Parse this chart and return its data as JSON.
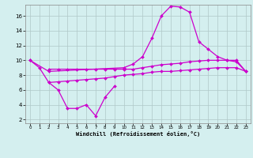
{
  "xlabel": "Windchill (Refroidissement éolien,°C)",
  "background_color": "#d4efef",
  "line_color": "#cc00cc",
  "grid_color": "#b0c8c8",
  "x": [
    0,
    1,
    2,
    3,
    4,
    5,
    6,
    7,
    8,
    9,
    10,
    11,
    12,
    13,
    14,
    15,
    16,
    17,
    18,
    19,
    20,
    21,
    22,
    23
  ],
  "line1": [
    10.0,
    9.0,
    7.0,
    6.0,
    3.5,
    3.5,
    4.0,
    2.5,
    5.0,
    6.5,
    null,
    null,
    null,
    null,
    null,
    null,
    null,
    null,
    null,
    null,
    null,
    null,
    null,
    null
  ],
  "line2": [
    10.0,
    null,
    8.5,
    null,
    null,
    null,
    null,
    null,
    null,
    null,
    9.0,
    9.5,
    10.5,
    13.0,
    16.0,
    17.3,
    17.2,
    16.5,
    12.5,
    11.5,
    10.5,
    10.0,
    10.0,
    8.5
  ],
  "line3": [
    null,
    null,
    8.8,
    8.8,
    8.8,
    8.8,
    8.8,
    8.8,
    8.8,
    8.8,
    8.8,
    8.8,
    9.0,
    9.2,
    9.4,
    9.5,
    9.6,
    9.8,
    9.9,
    10.0,
    10.0,
    10.0,
    9.8,
    8.5
  ],
  "line4": [
    null,
    null,
    7.0,
    7.1,
    7.2,
    7.3,
    7.4,
    7.5,
    7.6,
    7.8,
    8.0,
    8.1,
    8.2,
    8.4,
    8.5,
    8.5,
    8.6,
    8.7,
    8.8,
    8.9,
    9.0,
    9.0,
    9.0,
    8.5
  ],
  "ylim": [
    1.5,
    17.5
  ],
  "xlim": [
    -0.5,
    23.5
  ],
  "yticks": [
    2,
    4,
    6,
    8,
    10,
    12,
    14,
    16
  ],
  "xticks": [
    0,
    1,
    2,
    3,
    4,
    5,
    6,
    7,
    8,
    9,
    10,
    11,
    12,
    13,
    14,
    15,
    16,
    17,
    18,
    19,
    20,
    21,
    22,
    23
  ],
  "markersize": 2.0,
  "linewidth": 0.9
}
